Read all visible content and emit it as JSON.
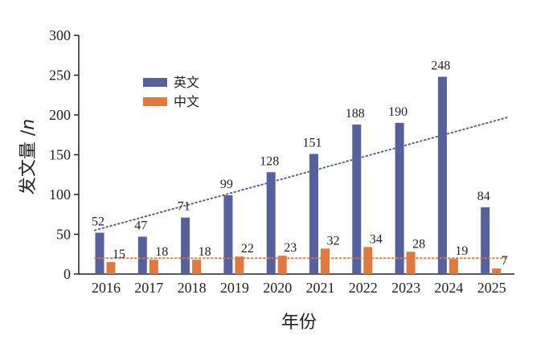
{
  "chart_data": {
    "type": "bar",
    "title": "",
    "xlabel": "年份",
    "ylabel": "发文量",
    "ylabel_var": "n",
    "categories": [
      "2016",
      "2017",
      "2018",
      "2019",
      "2020",
      "2021",
      "2022",
      "2023",
      "2024",
      "2025"
    ],
    "series": [
      {
        "name": "英文",
        "color": "#55609e",
        "values": [
          52,
          47,
          71,
          99,
          128,
          151,
          188,
          190,
          248,
          84
        ]
      },
      {
        "name": "中文",
        "color": "#e07a3c",
        "values": [
          15,
          18,
          18,
          22,
          23,
          32,
          34,
          28,
          19,
          7
        ]
      }
    ],
    "trendlines": [
      {
        "series": "英文",
        "style": "dotted",
        "color": "#55609e",
        "start": 55,
        "end": 197
      },
      {
        "series": "中文",
        "style": "dotted",
        "color": "#e07a3c",
        "start": 20,
        "end": 20
      }
    ],
    "ylim": [
      0,
      300
    ],
    "yticks": [
      0,
      50,
      100,
      150,
      200,
      250,
      300
    ],
    "grid": false,
    "legend_position": "upper-left"
  }
}
